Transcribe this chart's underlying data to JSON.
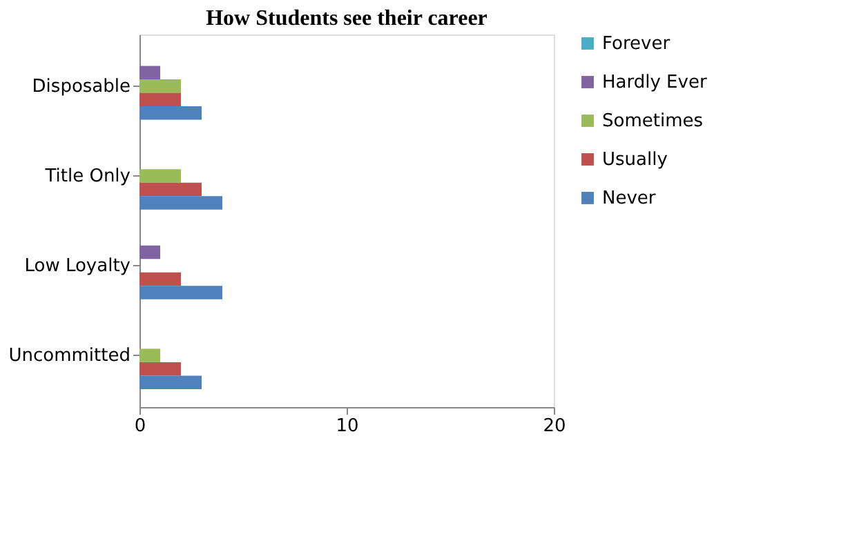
{
  "chart_data": {
    "type": "bar",
    "orientation": "horizontal",
    "title": "How Students see their career",
    "categories": [
      "Disposable",
      "Title Only",
      "Low Loyalty",
      "Uncommitted"
    ],
    "series": [
      {
        "name": "Forever",
        "color": "#4bacc6",
        "values": [
          0,
          0,
          0,
          0
        ]
      },
      {
        "name": "Hardly Ever",
        "color": "#8064a2",
        "values": [
          1,
          0,
          1,
          0
        ]
      },
      {
        "name": "Sometimes",
        "color": "#9bbb59",
        "values": [
          2,
          2,
          0,
          1
        ]
      },
      {
        "name": "Usually",
        "color": "#c0504d",
        "values": [
          2,
          3,
          2,
          2
        ]
      },
      {
        "name": "Never",
        "color": "#4f81bd",
        "values": [
          3,
          4,
          4,
          3
        ]
      }
    ],
    "xlim": [
      0,
      20
    ],
    "xticks": [
      0,
      10,
      20
    ],
    "grid": false,
    "legend": "right"
  }
}
